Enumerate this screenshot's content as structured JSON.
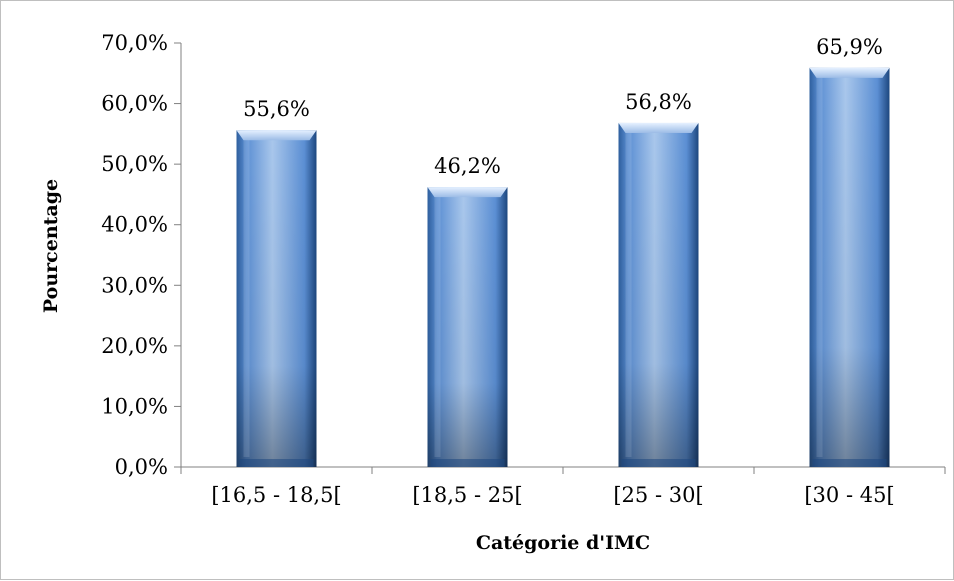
{
  "chart_data": {
    "type": "bar",
    "title": "",
    "xlabel": "Catégorie d'IMC",
    "ylabel": "Pourcentage",
    "categories": [
      "[16,5 - 18,5[",
      "[18,5 - 25[",
      "[25 - 30[",
      "[30 - 45["
    ],
    "values": [
      55.6,
      46.2,
      56.8,
      65.9
    ],
    "value_labels": [
      "55,6%",
      "46,2%",
      "56,8%",
      "65,9%"
    ],
    "ylim": [
      0,
      70
    ],
    "y_ticks": [
      0,
      10,
      20,
      30,
      40,
      50,
      60,
      70
    ],
    "y_tick_labels": [
      "0,0%",
      "10,0%",
      "20,0%",
      "30,0%",
      "40,0%",
      "50,0%",
      "60,0%",
      "70,0%"
    ],
    "grid": false,
    "legend": "none",
    "colors": {
      "bar_light": "#a9c7ec",
      "bar_mid": "#5b8fd4",
      "bar_dark": "#1d477f",
      "axis": "#808080"
    }
  }
}
